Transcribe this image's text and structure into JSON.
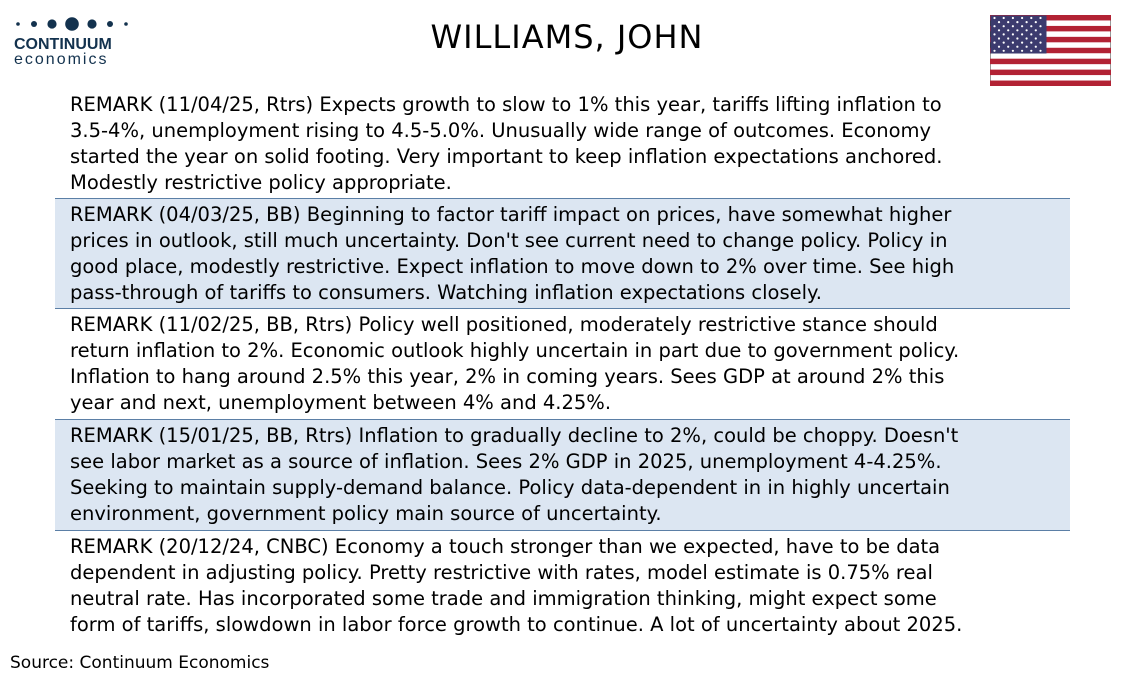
{
  "brand": {
    "name_line1": "CONTINUUM",
    "name_line2": "economics",
    "color": "#13324e"
  },
  "title": "WILLIAMS, JOHN",
  "flag": {
    "icon": "us-flag-icon",
    "colors": {
      "red": "#b22234",
      "white": "#ffffff",
      "blue": "#3c3b6e"
    }
  },
  "remarks": [
    {
      "text": "REMARK (11/04/25, Rtrs) Expects growth to slow to 1% this year, tariffs lifting inflation to\n3.5-4%, unemployment rising to 4.5-5.0%. Unusually wide  range of outcomes. Economy\nstarted the year on solid footing. Very important to keep inflation expectations anchored.\nModestly restrictive policy appropriate.",
      "shaded": false
    },
    {
      "text": "REMARK (04/03/25, BB) Beginning to factor tariff impact on prices, have somewhat higher\nprices in outlook, still much uncertainty. Don't see current need to change policy. Policy in\ngood place, modestly restrictive. Expect inflation to move down to 2% over time. See high\npass-through of tariffs to consumers. Watching inflation expectations closely.",
      "shaded": true
    },
    {
      "text": "REMARK (11/02/25, BB, Rtrs) Policy well positioned, moderately restrictive stance should\nreturn inflation to 2%. Economic outlook highly uncertain in part due to government policy.\nInflation to hang around 2.5% this year, 2% in coming years. Sees GDP at around 2% this\nyear and next, unemployment between 4% and 4.25%.",
      "shaded": false
    },
    {
      "text": "REMARK (15/01/25, BB, Rtrs) Inflation to gradually decline to 2%, could be choppy. Doesn't\nsee labor market as a source of inflation. Sees 2% GDP in 2025, unemployment 4-4.25%.\nSeeking to maintain supply-demand balance. Policy data-dependent in in highly uncertain\nenvironment, government policy main source of uncertainty.",
      "shaded": true
    },
    {
      "text": "REMARK (20/12/24, CNBC) Economy a touch stronger than we expected, have to be data\ndependent in adjusting policy. Pretty restrictive with rates, model estimate is 0.75% real\nneutral rate. Has incorporated some trade and immigration thinking, might expect some\nform of tariffs, slowdown in labor force growth to continue. A lot of uncertainty about 2025.",
      "shaded": false
    }
  ],
  "source": "Source: Continuum Economics",
  "colors": {
    "shade": "#dce6f2",
    "divider": "#5b7fa6"
  }
}
